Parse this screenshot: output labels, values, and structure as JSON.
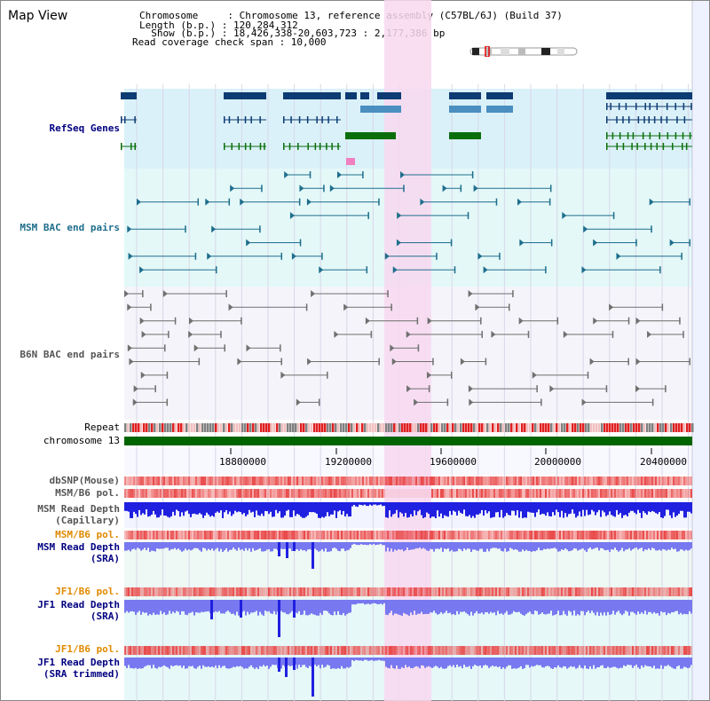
{
  "title": "Map View",
  "header": {
    "lines": [
      "Chromosome     : Chromosome 13, reference assembly (C57BL/6J) (Build 37)",
      "Length (b.p.) : 120,284,312",
      "  Show (b.p.) : 18,426,338-20,603,723 : 2,177,386 bp",
      "Read coverage check span : 10,000"
    ]
  },
  "tracks": {
    "refseq": "RefSeq Genes",
    "msm_bac": "MSM BAC end pairs",
    "b6n_bac": "B6N BAC end pairs",
    "repeat": "Repeat",
    "chromosome": "chromosome 13",
    "dbsnp": "dbSNP(Mouse)",
    "msm_b6_pol": "MSM/B6 pol.",
    "msm_depth_cap_1": "MSM Read Depth",
    "msm_depth_cap_2": "(Capillary)",
    "msm_b6_pol_2": "MSM/B6 pol.",
    "msm_depth_sra_1": "MSM Read Depth",
    "msm_depth_sra_2": "(SRA)",
    "jf1_b6_pol": "JF1/B6 pol.",
    "jf1_depth_sra_1": "JF1 Read Depth",
    "jf1_depth_sra_2": "(SRA)",
    "jf1_b6_pol_2": "JF1/B6 pol.",
    "jf1_depth_trim_1": "JF1 Read Depth",
    "jf1_depth_trim_2": "(SRA trimmed)"
  },
  "axis": {
    "ticks": [
      "18800000",
      "19200000",
      "19600000",
      "20000000",
      "20400000"
    ]
  },
  "colors": {
    "refseq_bg": "#daf1f9",
    "msm_bac_bg": "#e4f8f8",
    "b6n_bac_bg": "#f4f4fa",
    "highlight": "#f8d8f0",
    "gene_dark": "#0d3b73",
    "gene_mid": "#4a8fbf",
    "gene_green": "#0a6e0a",
    "bac_teal": "#1e6e8c",
    "bac_gray": "#707070",
    "chrom_green": "#006400",
    "depth_blue": "#2020e0",
    "depth_light": "#7878f0",
    "pol_red": "#e84040",
    "label_blue": "#000080",
    "label_teal": "#1e6e8c",
    "label_gray": "#555555",
    "label_orange": "#e08a00"
  }
}
